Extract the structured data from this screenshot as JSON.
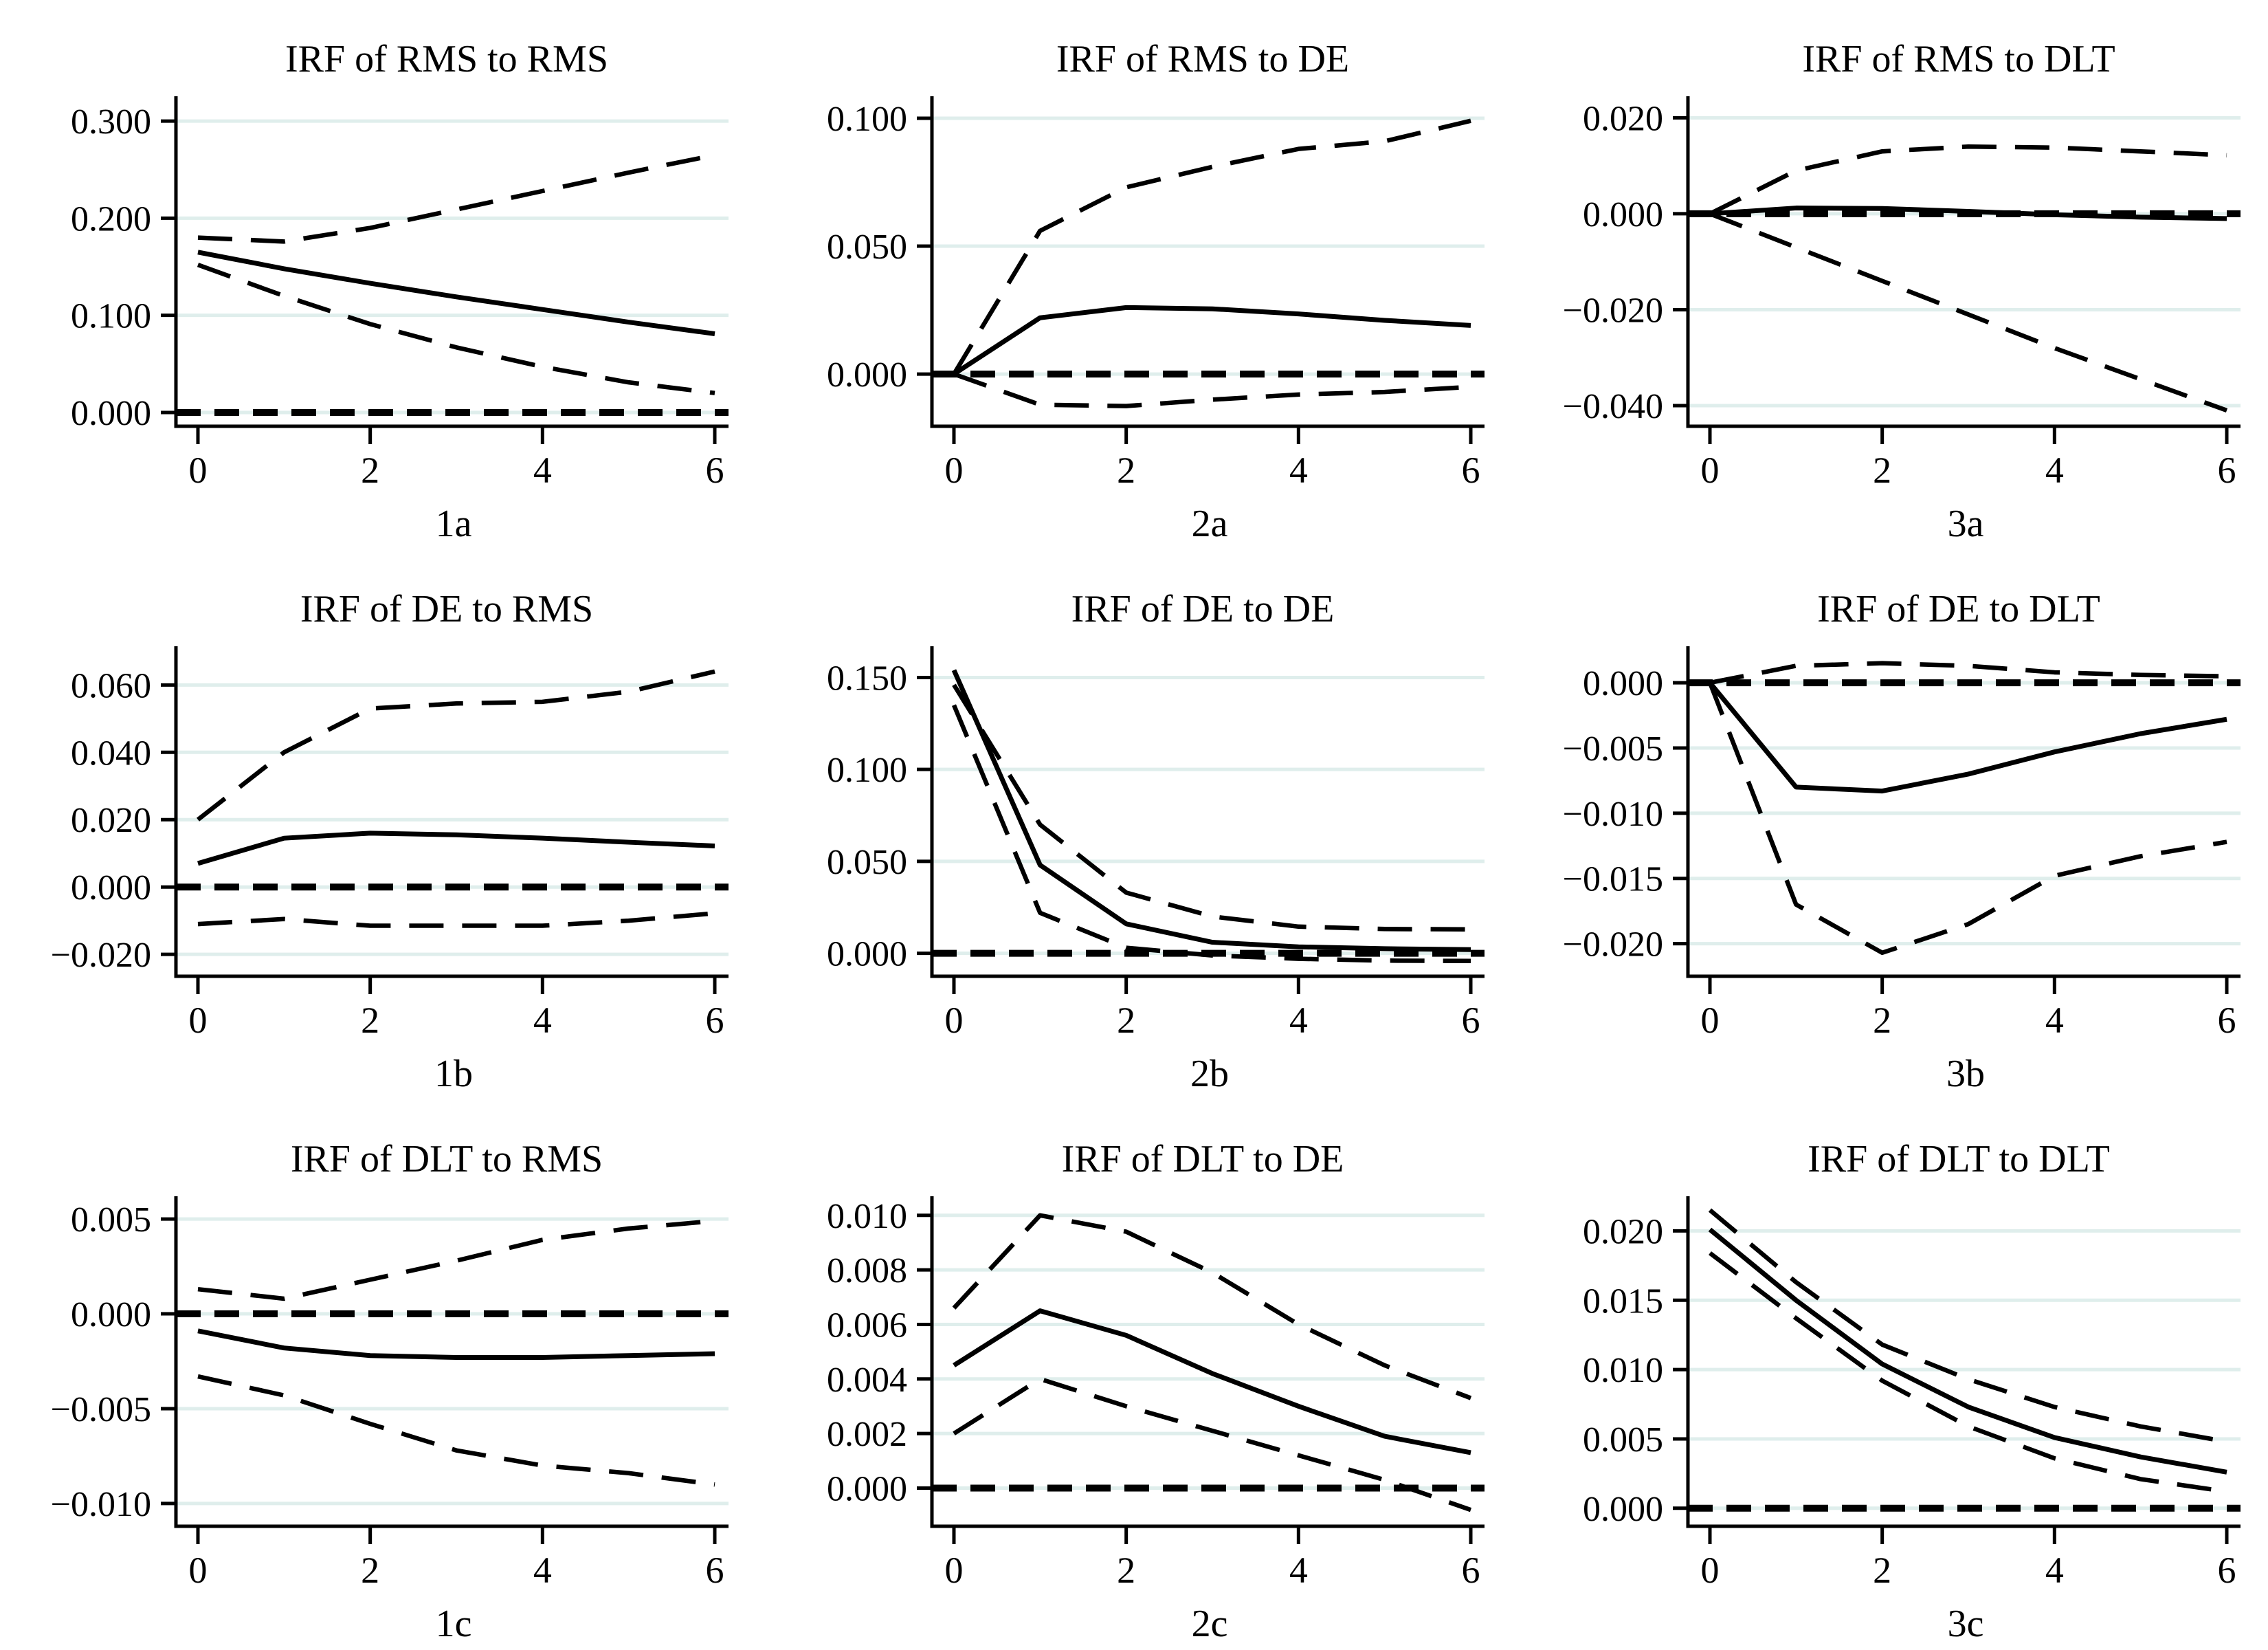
{
  "figure": {
    "background": "#ffffff",
    "colors": {
      "grid_line": "#dfeeec",
      "series_line": "#000000",
      "axis": "#000000"
    },
    "rows": 3,
    "cols": 3
  },
  "chart_data": [
    {
      "id": "1a",
      "type": "line",
      "title": "IRF of RMS to RMS",
      "xlabel": "1a",
      "x": [
        0,
        1,
        2,
        3,
        4,
        5,
        6
      ],
      "x_ticks": [
        {
          "v": 0,
          "label": "0"
        },
        {
          "v": 2,
          "label": "2"
        },
        {
          "v": 4,
          "label": "4"
        },
        {
          "v": 6,
          "label": "6"
        }
      ],
      "y_ticks": [
        {
          "v": 0.3,
          "label": "0.300"
        },
        {
          "v": 0.2,
          "label": "0.200"
        },
        {
          "v": 0.1,
          "label": "0.100"
        },
        {
          "v": 0.0,
          "label": "0.000"
        }
      ],
      "ylim": [
        -0.0142,
        0.3256
      ],
      "zero_line": true,
      "series": [
        {
          "name": "upper-ci",
          "style": "dashed",
          "values": [
            0.18,
            0.176,
            0.19,
            0.209,
            0.228,
            0.247,
            0.265
          ]
        },
        {
          "name": "lower-ci",
          "style": "dashed",
          "values": [
            0.152,
            0.12,
            0.091,
            0.067,
            0.047,
            0.031,
            0.02
          ]
        },
        {
          "name": "irf",
          "style": "solid",
          "values": [
            0.165,
            0.148,
            0.133,
            0.119,
            0.106,
            0.093,
            0.081
          ]
        }
      ]
    },
    {
      "id": "2a",
      "type": "line",
      "title": "IRF of RMS to DE",
      "xlabel": "2a",
      "x": [
        0,
        1,
        2,
        3,
        4,
        5,
        6
      ],
      "x_ticks": [
        {
          "v": 0,
          "label": "0"
        },
        {
          "v": 2,
          "label": "2"
        },
        {
          "v": 4,
          "label": "4"
        },
        {
          "v": 6,
          "label": "6"
        }
      ],
      "y_ticks": [
        {
          "v": 0.1,
          "label": "0.100"
        },
        {
          "v": 0.05,
          "label": "0.050"
        },
        {
          "v": 0.0,
          "label": "0.000"
        }
      ],
      "ylim": [
        -0.0204,
        0.1086
      ],
      "zero_line": true,
      "series": [
        {
          "name": "upper-ci",
          "style": "dashed",
          "values": [
            0.0,
            0.056,
            0.073,
            0.081,
            0.088,
            0.091,
            0.099
          ]
        },
        {
          "name": "lower-ci",
          "style": "dashed",
          "values": [
            0.0,
            -0.012,
            -0.0125,
            -0.01,
            -0.008,
            -0.007,
            -0.005
          ]
        },
        {
          "name": "irf",
          "style": "solid",
          "values": [
            0.0,
            0.022,
            0.026,
            0.0255,
            0.0235,
            0.021,
            0.019
          ]
        }
      ]
    },
    {
      "id": "3a",
      "type": "line",
      "title": "IRF of RMS to DLT",
      "xlabel": "3a",
      "x": [
        0,
        1,
        2,
        3,
        4,
        5,
        6
      ],
      "x_ticks": [
        {
          "v": 0,
          "label": "0"
        },
        {
          "v": 2,
          "label": "2"
        },
        {
          "v": 4,
          "label": "4"
        },
        {
          "v": 6,
          "label": "6"
        }
      ],
      "y_ticks": [
        {
          "v": 0.02,
          "label": "0.020"
        },
        {
          "v": 0.0,
          "label": "0.000"
        },
        {
          "v": -0.02,
          "label": "−0.020"
        },
        {
          "v": -0.04,
          "label": "−0.040"
        }
      ],
      "ylim": [
        -0.0443,
        0.0245
      ],
      "zero_line": true,
      "series": [
        {
          "name": "upper-ci",
          "style": "dashed",
          "values": [
            0.0,
            0.009,
            0.013,
            0.014,
            0.0138,
            0.013,
            0.0122
          ]
        },
        {
          "name": "lower-ci",
          "style": "dashed",
          "values": [
            0.0,
            -0.007,
            -0.014,
            -0.021,
            -0.028,
            -0.0345,
            -0.041
          ]
        },
        {
          "name": "irf",
          "style": "solid",
          "values": [
            0.0,
            0.0012,
            0.0011,
            0.0005,
            -0.0002,
            -0.0007,
            -0.001
          ]
        }
      ]
    },
    {
      "id": "1b",
      "type": "line",
      "title": "IRF of DE to RMS",
      "xlabel": "1b",
      "x": [
        0,
        1,
        2,
        3,
        4,
        5,
        6
      ],
      "x_ticks": [
        {
          "v": 0,
          "label": "0"
        },
        {
          "v": 2,
          "label": "2"
        },
        {
          "v": 4,
          "label": "4"
        },
        {
          "v": 6,
          "label": "6"
        }
      ],
      "y_ticks": [
        {
          "v": 0.06,
          "label": "0.060"
        },
        {
          "v": 0.04,
          "label": "0.040"
        },
        {
          "v": 0.02,
          "label": "0.020"
        },
        {
          "v": 0.0,
          "label": "0.000"
        },
        {
          "v": -0.02,
          "label": "−0.020"
        }
      ],
      "ylim": [
        -0.0265,
        0.0715
      ],
      "zero_line": true,
      "series": [
        {
          "name": "upper-ci",
          "style": "dashed",
          "values": [
            0.02,
            0.04,
            0.053,
            0.0545,
            0.055,
            0.058,
            0.064
          ]
        },
        {
          "name": "lower-ci",
          "style": "dashed",
          "values": [
            -0.011,
            -0.0095,
            -0.0115,
            -0.0115,
            -0.0115,
            -0.01,
            -0.0078
          ]
        },
        {
          "name": "irf",
          "style": "solid",
          "values": [
            0.007,
            0.0145,
            0.016,
            0.0155,
            0.0145,
            0.0133,
            0.0122
          ]
        }
      ]
    },
    {
      "id": "2b",
      "type": "line",
      "title": "IRF of DE to DE",
      "xlabel": "2b",
      "x": [
        0,
        1,
        2,
        3,
        4,
        5,
        6
      ],
      "x_ticks": [
        {
          "v": 0,
          "label": "0"
        },
        {
          "v": 2,
          "label": "2"
        },
        {
          "v": 4,
          "label": "4"
        },
        {
          "v": 6,
          "label": "6"
        }
      ],
      "y_ticks": [
        {
          "v": 0.15,
          "label": "0.150"
        },
        {
          "v": 0.1,
          "label": "0.100"
        },
        {
          "v": 0.05,
          "label": "0.050"
        },
        {
          "v": 0.0,
          "label": "0.000"
        }
      ],
      "ylim": [
        -0.0125,
        0.167
      ],
      "zero_line": true,
      "series": [
        {
          "name": "upper-ci",
          "style": "dashed",
          "values": [
            0.146,
            0.07,
            0.033,
            0.02,
            0.0145,
            0.0132,
            0.013
          ]
        },
        {
          "name": "lower-ci",
          "style": "dashed",
          "values": [
            0.135,
            0.022,
            0.003,
            -0.0012,
            -0.003,
            -0.004,
            -0.0042
          ]
        },
        {
          "name": "irf",
          "style": "solid",
          "values": [
            0.154,
            0.048,
            0.016,
            0.006,
            0.0035,
            0.0025,
            0.002
          ]
        }
      ]
    },
    {
      "id": "3b",
      "type": "line",
      "title": "IRF of DE to DLT",
      "xlabel": "3b",
      "x": [
        0,
        1,
        2,
        3,
        4,
        5,
        6
      ],
      "x_ticks": [
        {
          "v": 0,
          "label": "0"
        },
        {
          "v": 2,
          "label": "2"
        },
        {
          "v": 4,
          "label": "4"
        },
        {
          "v": 6,
          "label": "6"
        }
      ],
      "y_ticks": [
        {
          "v": 0.0,
          "label": "0.000"
        },
        {
          "v": -0.005,
          "label": "−0.005"
        },
        {
          "v": -0.01,
          "label": "−0.010"
        },
        {
          "v": -0.015,
          "label": "−0.015"
        },
        {
          "v": -0.02,
          "label": "−0.020"
        }
      ],
      "ylim": [
        -0.0225,
        0.0028
      ],
      "zero_line": true,
      "series": [
        {
          "name": "upper-ci",
          "style": "dashed",
          "values": [
            0.0,
            0.0013,
            0.0015,
            0.0013,
            0.0008,
            0.0006,
            0.0005
          ]
        },
        {
          "name": "lower-ci",
          "style": "dashed",
          "values": [
            0.0,
            -0.017,
            -0.0207,
            -0.0185,
            -0.0148,
            -0.0133,
            -0.0122
          ]
        },
        {
          "name": "irf",
          "style": "solid",
          "values": [
            0.0,
            -0.008,
            -0.0083,
            -0.007,
            -0.0053,
            -0.0039,
            -0.0028
          ]
        }
      ]
    },
    {
      "id": "1c",
      "type": "line",
      "title": "IRF of DLT to RMS",
      "xlabel": "1c",
      "x": [
        0,
        1,
        2,
        3,
        4,
        5,
        6
      ],
      "x_ticks": [
        {
          "v": 0,
          "label": "0"
        },
        {
          "v": 2,
          "label": "2"
        },
        {
          "v": 4,
          "label": "4"
        },
        {
          "v": 6,
          "label": "6"
        }
      ],
      "y_ticks": [
        {
          "v": 0.005,
          "label": "0.005"
        },
        {
          "v": 0.0,
          "label": "0.000"
        },
        {
          "v": -0.005,
          "label": "−0.005"
        },
        {
          "v": -0.01,
          "label": "−0.010"
        }
      ],
      "ylim": [
        -0.0112,
        0.0062
      ],
      "zero_line": true,
      "series": [
        {
          "name": "upper-ci",
          "style": "dashed",
          "values": [
            0.0013,
            0.0008,
            0.0018,
            0.0028,
            0.0039,
            0.0045,
            0.0049
          ]
        },
        {
          "name": "lower-ci",
          "style": "dashed",
          "values": [
            -0.0033,
            -0.0043,
            -0.0058,
            -0.0072,
            -0.008,
            -0.0084,
            -0.009
          ]
        },
        {
          "name": "irf",
          "style": "solid",
          "values": [
            -0.0009,
            -0.0018,
            -0.0022,
            -0.0023,
            -0.0023,
            -0.0022,
            -0.0021
          ]
        }
      ]
    },
    {
      "id": "2c",
      "type": "line",
      "title": "IRF of DLT to DE",
      "xlabel": "2c",
      "x": [
        0,
        1,
        2,
        3,
        4,
        5,
        6
      ],
      "x_ticks": [
        {
          "v": 0,
          "label": "0"
        },
        {
          "v": 2,
          "label": "2"
        },
        {
          "v": 4,
          "label": "4"
        },
        {
          "v": 6,
          "label": "6"
        }
      ],
      "y_ticks": [
        {
          "v": 0.01,
          "label": "0.010"
        },
        {
          "v": 0.008,
          "label": "0.008"
        },
        {
          "v": 0.006,
          "label": "0.006"
        },
        {
          "v": 0.004,
          "label": "0.004"
        },
        {
          "v": 0.002,
          "label": "0.002"
        },
        {
          "v": 0.0,
          "label": "0.000"
        }
      ],
      "ylim": [
        -0.0014,
        0.0107
      ],
      "zero_line": true,
      "series": [
        {
          "name": "upper-ci",
          "style": "dashed",
          "values": [
            0.0066,
            0.01,
            0.0094,
            0.0079,
            0.006,
            0.0045,
            0.0033
          ]
        },
        {
          "name": "lower-ci",
          "style": "dashed",
          "values": [
            0.002,
            0.004,
            0.003,
            0.0021,
            0.0012,
            0.0003,
            -0.0008
          ]
        },
        {
          "name": "irf",
          "style": "solid",
          "values": [
            0.0045,
            0.0065,
            0.0056,
            0.0042,
            0.003,
            0.0019,
            0.0013
          ]
        }
      ]
    },
    {
      "id": "3c",
      "type": "line",
      "title": "IRF of DLT to DLT",
      "xlabel": "3c",
      "x": [
        0,
        1,
        2,
        3,
        4,
        5,
        6
      ],
      "x_ticks": [
        {
          "v": 0,
          "label": "0"
        },
        {
          "v": 2,
          "label": "2"
        },
        {
          "v": 4,
          "label": "4"
        },
        {
          "v": 6,
          "label": "6"
        }
      ],
      "y_ticks": [
        {
          "v": 0.02,
          "label": "0.020"
        },
        {
          "v": 0.015,
          "label": "0.015"
        },
        {
          "v": 0.01,
          "label": "0.010"
        },
        {
          "v": 0.005,
          "label": "0.005"
        },
        {
          "v": 0.0,
          "label": "0.000"
        }
      ],
      "ylim": [
        -0.0013,
        0.0225
      ],
      "zero_line": true,
      "series": [
        {
          "name": "upper-ci",
          "style": "dashed",
          "values": [
            0.0215,
            0.0163,
            0.0118,
            0.0093,
            0.0073,
            0.0059,
            0.0048
          ]
        },
        {
          "name": "lower-ci",
          "style": "dashed",
          "values": [
            0.0184,
            0.0137,
            0.0092,
            0.0059,
            0.0036,
            0.0021,
            0.0012
          ]
        },
        {
          "name": "irf",
          "style": "solid",
          "values": [
            0.0201,
            0.015,
            0.0104,
            0.0073,
            0.0051,
            0.0037,
            0.0026
          ]
        }
      ]
    }
  ]
}
